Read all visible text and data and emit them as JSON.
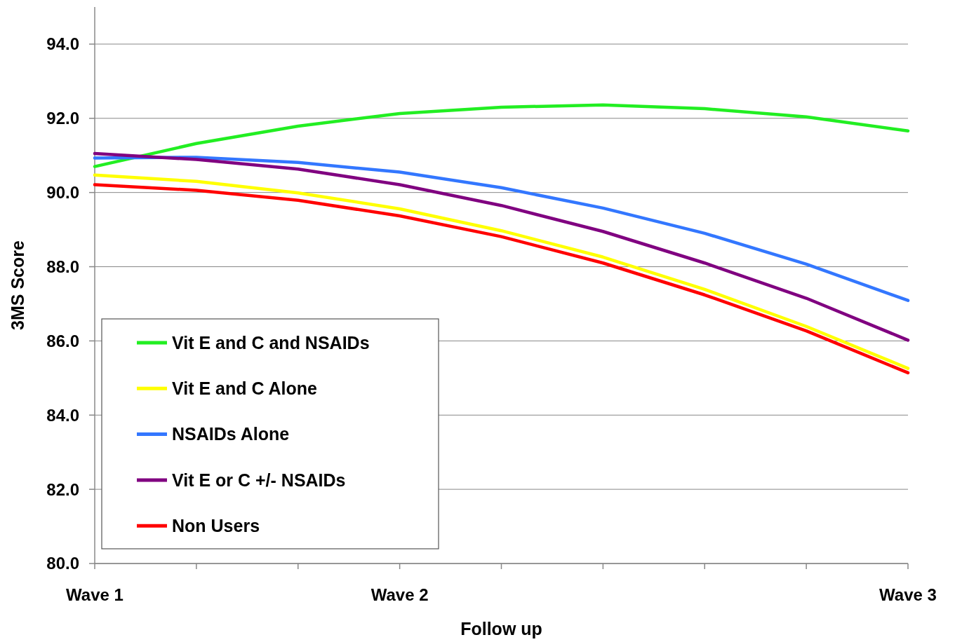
{
  "chart_data": {
    "type": "line",
    "xlabel": "Follow up",
    "ylabel": "3MS Score",
    "categories": [
      "Wave 1",
      null,
      null,
      "Wave 2",
      null,
      null,
      null,
      null,
      "Wave 3"
    ],
    "series": [
      {
        "name": "Vit E and C and NSAIDs",
        "color": "#22ee22",
        "values": [
          90.7,
          91.32,
          91.79,
          92.13,
          92.3,
          92.36,
          92.26,
          92.04,
          91.66
        ]
      },
      {
        "name": "Vit E and C Alone",
        "color": "#ffff00",
        "values": [
          90.47,
          90.3,
          89.99,
          89.56,
          88.97,
          88.26,
          87.39,
          86.39,
          85.26
        ]
      },
      {
        "name": "NSAIDs Alone",
        "color": "#3377ff",
        "values": [
          90.93,
          90.95,
          90.81,
          90.55,
          90.13,
          89.58,
          88.9,
          88.07,
          87.09
        ]
      },
      {
        "name": "Vit E or C +/- NSAIDs",
        "color": "#800080",
        "values": [
          91.05,
          90.89,
          90.63,
          90.21,
          89.65,
          88.95,
          88.1,
          87.15,
          86.02
        ]
      },
      {
        "name": "Non Users",
        "color": "#ff0000",
        "values": [
          90.21,
          90.06,
          89.79,
          89.37,
          88.81,
          88.1,
          87.24,
          86.27,
          85.14
        ]
      }
    ],
    "ylim": [
      80,
      95
    ],
    "yticks": [
      {
        "value": 80,
        "label": "80.0"
      },
      {
        "value": 82,
        "label": "82.0"
      },
      {
        "value": 84,
        "label": "84.0"
      },
      {
        "value": 86,
        "label": "86.0"
      },
      {
        "value": 88,
        "label": "88.0"
      },
      {
        "value": 90,
        "label": "90.0"
      },
      {
        "value": 92,
        "label": "92.0"
      },
      {
        "value": 94,
        "label": "94.0"
      }
    ],
    "grid": "y",
    "legend": "bottom left",
    "marker": "none",
    "line_style": "solid"
  }
}
